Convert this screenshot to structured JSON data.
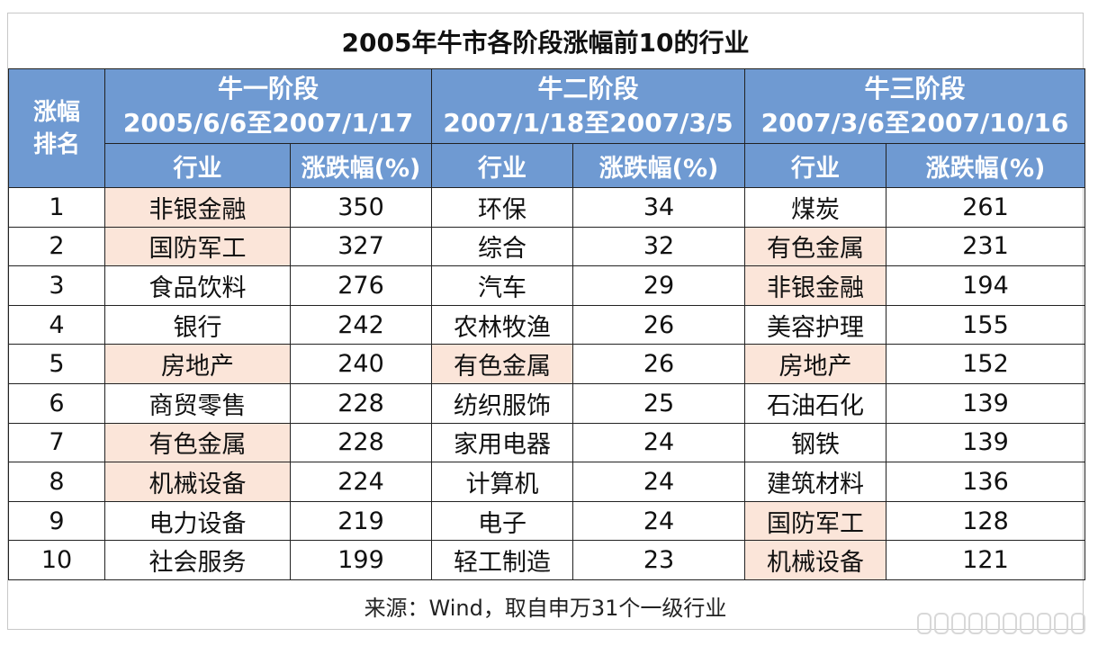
{
  "title": "2005年牛市各阶段涨幅前10的行业",
  "header": {
    "rank_label_line1": "涨幅",
    "rank_label_line2": "排名",
    "stages": [
      {
        "name": "牛一阶段",
        "period": "2005/6/6至2007/1/17"
      },
      {
        "name": "牛二阶段",
        "period": "2007/1/18至2007/3/5"
      },
      {
        "name": "牛三阶段",
        "period": "2007/3/6至2007/10/16"
      }
    ],
    "col_industry": "行业",
    "col_change": "涨跌幅(%)"
  },
  "rows": [
    {
      "rank": "1",
      "s1": "非银金融",
      "v1": "350",
      "s2": "环保",
      "v2": "34",
      "s3": "煤炭",
      "v3": "261"
    },
    {
      "rank": "2",
      "s1": "国防军工",
      "v1": "327",
      "s2": "综合",
      "v2": "32",
      "s3": "有色金属",
      "v3": "231"
    },
    {
      "rank": "3",
      "s1": "食品饮料",
      "v1": "276",
      "s2": "汽车",
      "v2": "29",
      "s3": "非银金融",
      "v3": "194"
    },
    {
      "rank": "4",
      "s1": "银行",
      "v1": "242",
      "s2": "农林牧渔",
      "v2": "26",
      "s3": "美容护理",
      "v3": "155"
    },
    {
      "rank": "5",
      "s1": "房地产",
      "v1": "240",
      "s2": "有色金属",
      "v2": "26",
      "s3": "房地产",
      "v3": "152"
    },
    {
      "rank": "6",
      "s1": "商贸零售",
      "v1": "228",
      "s2": "纺织服饰",
      "v2": "25",
      "s3": "石油石化",
      "v3": "139"
    },
    {
      "rank": "7",
      "s1": "有色金属",
      "v1": "228",
      "s2": "家用电器",
      "v2": "24",
      "s3": "钢铁",
      "v3": "139"
    },
    {
      "rank": "8",
      "s1": "机械设备",
      "v1": "224",
      "s2": "计算机",
      "v2": "24",
      "s3": "建筑材料",
      "v3": "136"
    },
    {
      "rank": "9",
      "s1": "电力设备",
      "v1": "219",
      "s2": "电子",
      "v2": "24",
      "s3": "国防军工",
      "v3": "128"
    },
    {
      "rank": "10",
      "s1": "社会服务",
      "v1": "199",
      "s2": "轻工制造",
      "v2": "23",
      "s3": "机械设备",
      "v3": "121"
    }
  ],
  "highlight": {
    "color": "#fbe5d9",
    "s1": [
      "非银金融",
      "国防军工",
      "房地产",
      "有色金属",
      "机械设备"
    ],
    "s2": [
      "有色金属"
    ],
    "s3": [
      "有色金属",
      "非银金融",
      "房地产",
      "国防军工",
      "机械设备"
    ]
  },
  "header_color": "#6f9ad2",
  "source": "来源：Wind，取自申万31个一级行业"
}
